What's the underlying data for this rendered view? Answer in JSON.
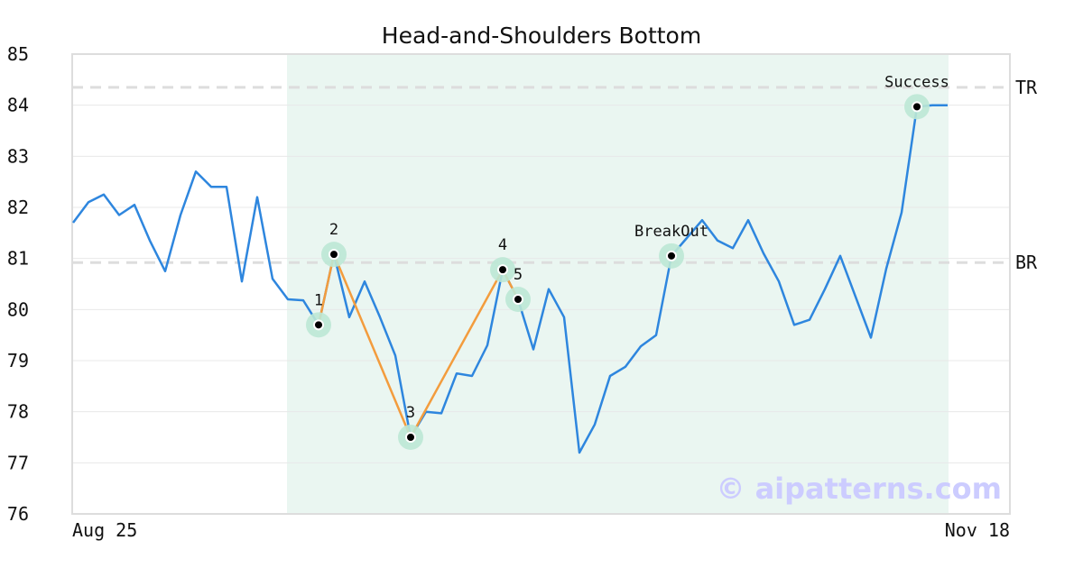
{
  "chart_data": {
    "type": "line",
    "title": "Head-and-Shoulders Bottom",
    "ylim": [
      76,
      85
    ],
    "y_ticks": [
      "76",
      "77",
      "78",
      "79",
      "80",
      "81",
      "82",
      "83",
      "84",
      "85"
    ],
    "x_tick_labels": [
      "Aug 25",
      "Nov 18"
    ],
    "grid": "horizontal",
    "price": [
      81.7,
      82.1,
      82.25,
      81.85,
      82.05,
      81.35,
      80.75,
      81.85,
      82.7,
      82.4,
      82.4,
      80.55,
      82.2,
      80.6,
      80.2,
      80.18,
      79.7,
      81.08,
      79.85,
      80.55,
      79.85,
      79.1,
      77.5,
      78.0,
      77.97,
      78.75,
      78.7,
      79.3,
      80.78,
      80.2,
      79.22,
      80.4,
      79.85,
      77.2,
      77.75,
      78.7,
      78.88,
      79.28,
      79.5,
      81.05,
      81.4,
      81.75,
      81.35,
      81.2,
      81.75,
      81.1,
      80.55,
      79.7,
      79.8,
      80.4,
      81.05,
      80.25,
      79.45,
      80.8,
      81.9,
      83.97,
      84.0,
      84.0
    ],
    "highlight_range": [
      14,
      57
    ],
    "pattern_points": [
      {
        "label": "1",
        "index": 16,
        "value": 79.7
      },
      {
        "label": "2",
        "index": 17,
        "value": 81.08
      },
      {
        "label": "3",
        "index": 22,
        "value": 77.5
      },
      {
        "label": "4",
        "index": 28,
        "value": 80.78
      },
      {
        "label": "5",
        "index": 29,
        "value": 80.2
      }
    ],
    "events": [
      {
        "label": "BreakOut",
        "index": 39,
        "value": 81.05
      },
      {
        "label": "Success",
        "index": 55,
        "value": 83.97
      }
    ],
    "reference_lines": [
      {
        "label": "TR",
        "value": 84.35
      },
      {
        "label": "BR",
        "value": 80.92
      }
    ],
    "colors": {
      "price_line": "#2e86de",
      "pattern_line": "#f39c3d",
      "highlight": "#eaf6f1",
      "marker_halo": "#bde8d5",
      "reference": "#dddddd",
      "grid": "#e8e8e8",
      "frame": "#dddddd"
    }
  },
  "watermark": "© aipatterns.com"
}
